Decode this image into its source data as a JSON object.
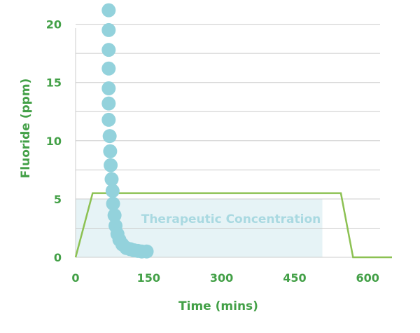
{
  "chart_data": {
    "type": "scatter",
    "title": "",
    "xlabel": "Time (mins)",
    "ylabel": "Fluoride (ppm)",
    "xlim": [
      0,
      650
    ],
    "ylim": [
      0,
      21
    ],
    "x_ticks": [
      0,
      150,
      300,
      450,
      600
    ],
    "y_ticks": [
      0,
      5,
      10,
      15,
      20
    ],
    "minor_gridlines_y": [
      2.5,
      7.5,
      12.5,
      17.5
    ],
    "grid": true,
    "series": [
      {
        "name": "",
        "kind": "scatter",
        "color": "#93d2dc",
        "points": [
          {
            "x": 68,
            "y": 21.2
          },
          {
            "x": 68,
            "y": 19.5
          },
          {
            "x": 68,
            "y": 17.8
          },
          {
            "x": 68,
            "y": 16.2
          },
          {
            "x": 68,
            "y": 14.5
          },
          {
            "x": 68,
            "y": 13.2
          },
          {
            "x": 68,
            "y": 11.8
          },
          {
            "x": 70,
            "y": 10.4
          },
          {
            "x": 71,
            "y": 9.1
          },
          {
            "x": 72,
            "y": 7.9
          },
          {
            "x": 74,
            "y": 6.7
          },
          {
            "x": 76,
            "y": 5.7
          },
          {
            "x": 77,
            "y": 4.6
          },
          {
            "x": 80,
            "y": 3.6
          },
          {
            "x": 82,
            "y": 2.7
          },
          {
            "x": 86,
            "y": 2.0
          },
          {
            "x": 90,
            "y": 1.5
          },
          {
            "x": 96,
            "y": 1.1
          },
          {
            "x": 104,
            "y": 0.8
          },
          {
            "x": 112,
            "y": 0.7
          },
          {
            "x": 120,
            "y": 0.6
          },
          {
            "x": 128,
            "y": 0.55
          },
          {
            "x": 136,
            "y": 0.5
          },
          {
            "x": 146,
            "y": 0.5
          }
        ]
      },
      {
        "name": "",
        "kind": "line",
        "color": "#8cc152",
        "points": [
          {
            "x": 0,
            "y": 0
          },
          {
            "x": 35,
            "y": 5.5
          },
          {
            "x": 545,
            "y": 5.5
          },
          {
            "x": 570,
            "y": 0
          },
          {
            "x": 650,
            "y": 0
          }
        ]
      }
    ],
    "band": {
      "label": "Therapeutic Concentration",
      "y_from": 0,
      "y_to": 5,
      "x_from": 0,
      "x_to": 622,
      "color": "#e6f3f6",
      "label_color": "#a9d9e1"
    },
    "colors": {
      "axis_text": "#43a047",
      "grid": "#cccccc",
      "band": "#e6f3f6",
      "scatter": "#93d2dc",
      "line": "#8cc152"
    }
  }
}
